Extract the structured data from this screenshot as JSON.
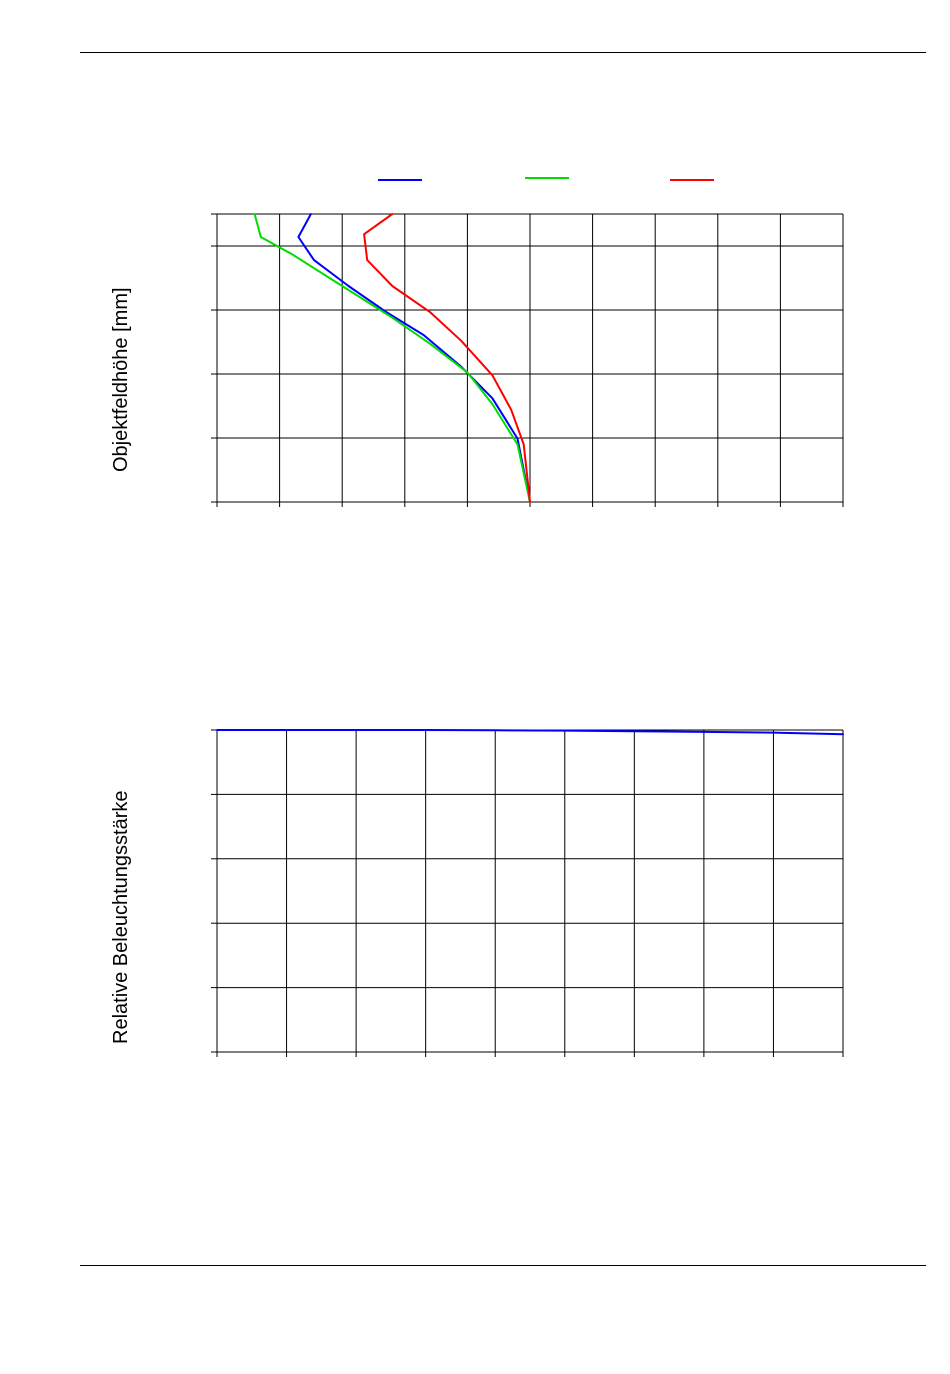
{
  "page": {
    "background": "#ffffff"
  },
  "chart_data": [
    {
      "type": "line",
      "ylabel": "Objektfeldhöhe [mm]",
      "xlim": [
        -5,
        5
      ],
      "ylim": [
        0,
        1
      ],
      "grid": true,
      "x_gridlines": 10,
      "y_gridlines": [
        0,
        0.2222,
        0.4444,
        0.6667,
        0.8889,
        1.0
      ],
      "legend": "top",
      "series": [
        {
          "color": "#0000ff",
          "points": [
            [
              -3.5,
              1.0
            ],
            [
              -3.7,
              0.92
            ],
            [
              -3.45,
              0.84
            ],
            [
              -2.9,
              0.75
            ],
            [
              -2.3,
              0.66
            ],
            [
              -1.7,
              0.58
            ],
            [
              -1.1,
              0.47
            ],
            [
              -0.6,
              0.36
            ],
            [
              -0.2,
              0.22
            ],
            [
              0.0,
              0.0
            ]
          ]
        },
        {
          "color": "#00dd00",
          "points": [
            [
              -4.4,
              1.0
            ],
            [
              -4.3,
              0.92
            ],
            [
              -3.8,
              0.86
            ],
            [
              -3.0,
              0.75
            ],
            [
              -2.2,
              0.64
            ],
            [
              -1.6,
              0.55
            ],
            [
              -1.0,
              0.45
            ],
            [
              -0.6,
              0.34
            ],
            [
              -0.2,
              0.2
            ],
            [
              0.0,
              0.0
            ]
          ]
        },
        {
          "color": "#ff0000",
          "points": [
            [
              -2.2,
              1.0
            ],
            [
              -2.65,
              0.93
            ],
            [
              -2.6,
              0.84
            ],
            [
              -2.2,
              0.75
            ],
            [
              -1.6,
              0.66
            ],
            [
              -1.1,
              0.56
            ],
            [
              -0.6,
              0.44
            ],
            [
              -0.3,
              0.32
            ],
            [
              -0.1,
              0.2
            ],
            [
              0.0,
              0.0
            ]
          ]
        }
      ]
    },
    {
      "type": "line",
      "ylabel": "Relative Beleuchtungsstärke",
      "xlim": [
        0,
        9
      ],
      "ylim": [
        0,
        1
      ],
      "grid": true,
      "x_gridlines": 9,
      "y_gridlines": [
        0,
        0.2,
        0.4,
        0.6,
        0.8,
        1.0
      ],
      "series": [
        {
          "color": "#0000ff",
          "points": [
            [
              0,
              1.0
            ],
            [
              1,
              1.0
            ],
            [
              2,
              1.0
            ],
            [
              3,
              1.0
            ],
            [
              4,
              0.999
            ],
            [
              5,
              0.998
            ],
            [
              6,
              0.996
            ],
            [
              7,
              0.994
            ],
            [
              8,
              0.992
            ],
            [
              9,
              0.987
            ]
          ]
        }
      ]
    }
  ]
}
